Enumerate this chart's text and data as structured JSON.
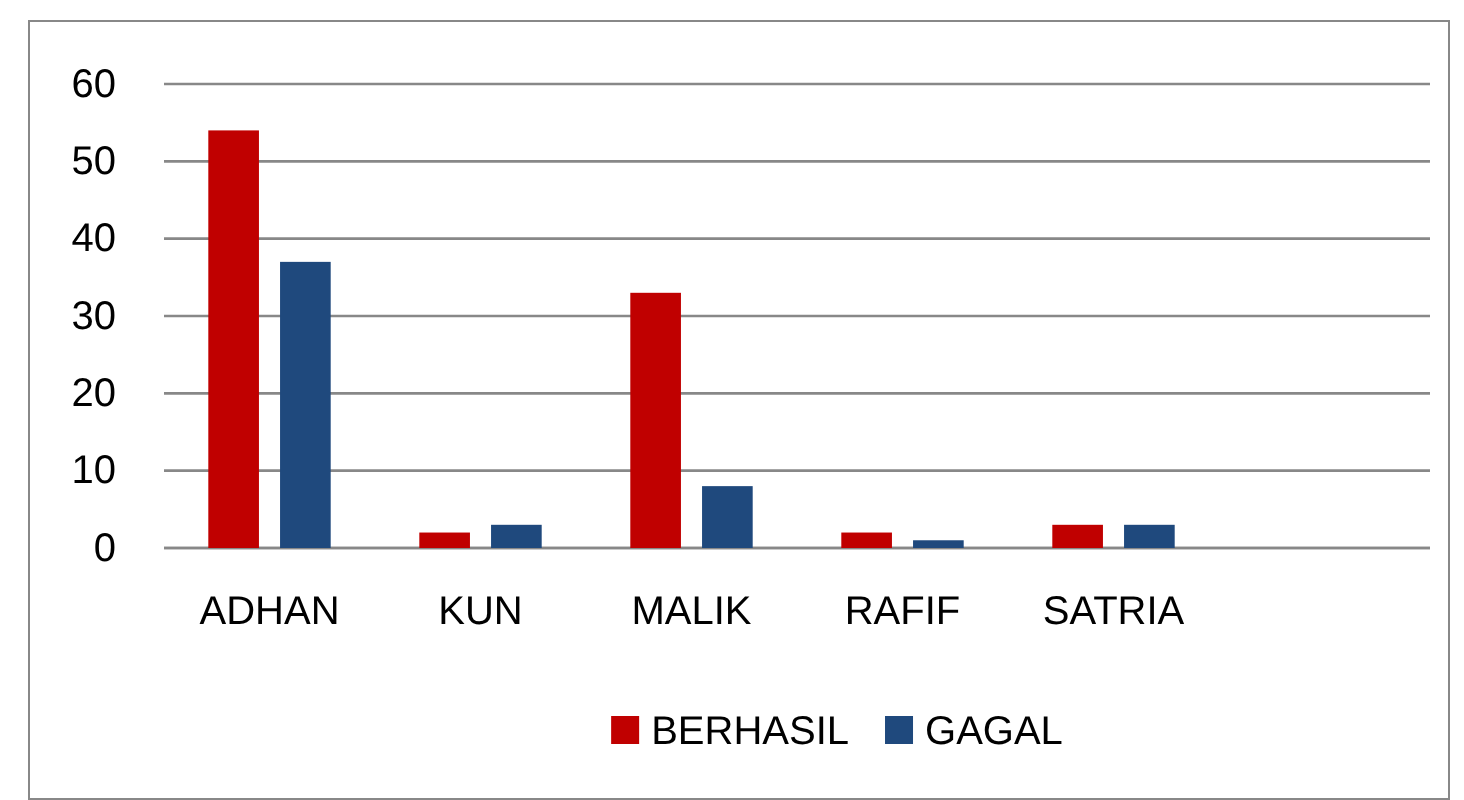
{
  "chart_data": {
    "type": "bar",
    "categories": [
      "ADHAN",
      "KUN",
      "MALIK",
      "RAFIF",
      "SATRIA",
      null
    ],
    "series": [
      {
        "name": "BERHASIL",
        "color": "#c00000",
        "values": [
          54,
          2,
          33,
          2,
          3,
          null
        ]
      },
      {
        "name": "GAGAL",
        "color": "#1f497d",
        "values": [
          37,
          3,
          8,
          1,
          3,
          null
        ]
      }
    ],
    "ylim": [
      0,
      60
    ],
    "yticks": [
      0,
      10,
      20,
      30,
      40,
      50,
      60
    ],
    "grid": "y",
    "legend": "bottom"
  }
}
